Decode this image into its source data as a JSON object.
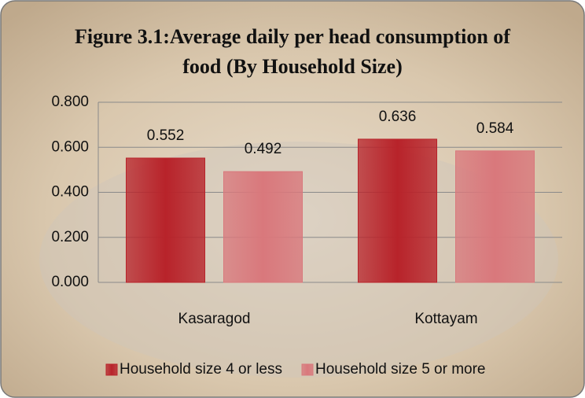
{
  "chart_data": {
    "type": "bar",
    "title": "Figure 3.1:Average daily per head consumption of food (By Household Size)",
    "categories": [
      "Kasaragod",
      "Kottayam"
    ],
    "series": [
      {
        "name": "Household size 4 or less",
        "color": "#b8232a",
        "values": [
          0.552,
          0.636
        ]
      },
      {
        "name": "Household size 5 or more",
        "color": "#d9787c",
        "values": [
          0.492,
          0.584
        ]
      }
    ],
    "ylim": [
      0,
      0.8
    ],
    "yticks": [
      {
        "value": 0,
        "label": "0.000"
      },
      {
        "value": 0.2,
        "label": "0.200"
      },
      {
        "value": 0.4,
        "label": "0.400"
      },
      {
        "value": 0.6,
        "label": "0.600"
      },
      {
        "value": 0.8,
        "label": "0.800"
      }
    ],
    "grid": true,
    "legend": "bottom"
  }
}
